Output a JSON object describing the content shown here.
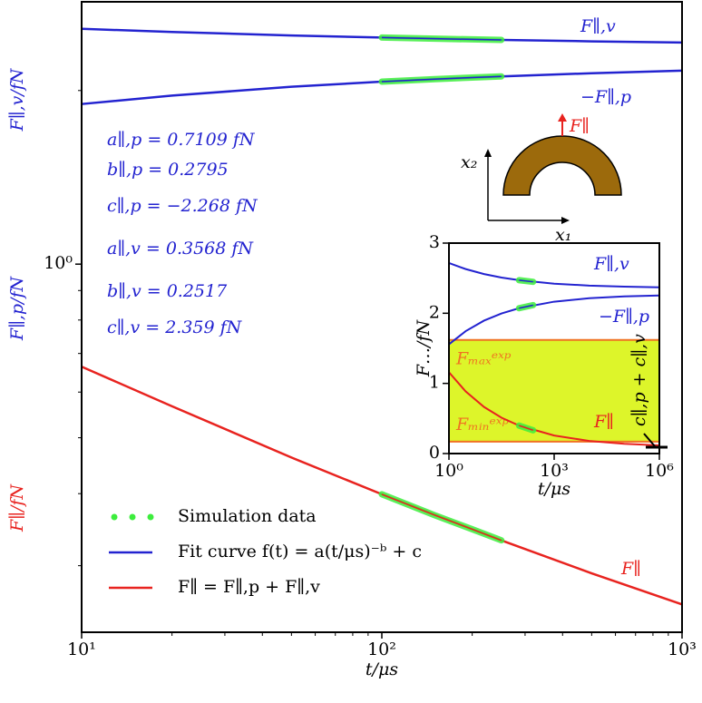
{
  "chart_data": [
    {
      "type": "line",
      "xlabel": "t/μs",
      "ylabels": [
        {
          "text": "F∥,v/fN",
          "color": "#2323d0"
        },
        {
          "text": "F∥,p/fN",
          "color": "#2323d0"
        },
        {
          "text": "F∥/fN",
          "color": "#e8231f"
        }
      ],
      "xlog": true,
      "ylog": true,
      "xlim": [
        10,
        1000
      ],
      "ylim": [
        0.23,
        2.85
      ],
      "xticks": [
        {
          "value": 10,
          "label": "10¹"
        },
        {
          "value": 100,
          "label": "10²"
        },
        {
          "value": 1000,
          "label": "10³"
        }
      ],
      "xminor": [
        20,
        30,
        40,
        50,
        60,
        70,
        80,
        90,
        200,
        300,
        400,
        500,
        600,
        700,
        800,
        900
      ],
      "yticks": [
        {
          "value": 1,
          "label": "10⁰"
        }
      ],
      "yminor": [
        0.3,
        0.4,
        0.5,
        0.6,
        0.7,
        0.8,
        0.9,
        2
      ],
      "curves": [
        {
          "label": "F∥,v",
          "color": "#2323d0",
          "x": [
            10,
            20,
            50,
            100,
            200,
            250,
            500,
            1000
          ],
          "values": [
            2.559,
            2.527,
            2.492,
            2.471,
            2.453,
            2.448,
            2.434,
            2.422
          ],
          "sim_x": [
            100,
            150,
            200,
            250
          ],
          "sim_values": [
            2.471,
            2.46,
            2.453,
            2.448
          ]
        },
        {
          "label": "−F∥,p",
          "color": "#2323d0",
          "x": [
            10,
            20,
            50,
            100,
            200,
            250,
            500,
            1000
          ],
          "values": [
            1.895,
            1.96,
            2.03,
            2.072,
            2.106,
            2.116,
            2.143,
            2.165
          ],
          "sim_x": [
            100,
            150,
            200,
            250
          ],
          "sim_values": [
            2.072,
            2.093,
            2.106,
            2.116
          ]
        },
        {
          "label": "F∥",
          "color": "#e8231f",
          "x": [
            10,
            20,
            50,
            100,
            200,
            250,
            500,
            1000
          ],
          "values": [
            0.664,
            0.567,
            0.462,
            0.399,
            0.347,
            0.332,
            0.291,
            0.257
          ],
          "sim_x": [
            100,
            150,
            200,
            250
          ],
          "sim_values": [
            0.399,
            0.367,
            0.347,
            0.332
          ]
        }
      ],
      "sim_color": "#3ded3d",
      "parameters": [
        "a∥,p = 0.7109 fN",
        "b∥,p = 0.2795",
        "c∥,p = −2.268 fN",
        "a∥,v = 0.3568 fN",
        "b∥,v = 0.2517",
        "c∥,v = 2.359 fN"
      ],
      "legend": [
        {
          "label": "Simulation data",
          "color": "#3ded3d",
          "style": "dotted"
        },
        {
          "label": "Fit curve f(t) = a(t/μs)⁻ᵇ + c",
          "color": "#2323d0",
          "style": "solid"
        },
        {
          "label": "F∥ = F∥,p + F∥,v",
          "color": "#e8231f",
          "style": "solid"
        }
      ]
    },
    {
      "type": "line",
      "xlabel": "t/μs",
      "ylabel": "F…/fN",
      "xlog": true,
      "xlim": [
        1,
        1000000
      ],
      "ylim": [
        0,
        3
      ],
      "xticks": [
        {
          "value": 1,
          "label": "10⁰"
        },
        {
          "value": 1000,
          "label": "10³"
        },
        {
          "value": 1000000,
          "label": "10⁶"
        }
      ],
      "yticks": [
        0,
        1,
        2,
        3
      ],
      "band": {
        "min": 0.17,
        "max": 1.62,
        "color": "#ddf52a",
        "edge_color": "#f07222",
        "min_label": "Fₘᵢₙᵉˣᵖ",
        "max_label": "Fₘₐₓᵉˣᵖ"
      },
      "curves": [
        {
          "label": "F∥,v",
          "color": "#2323d0",
          "x": [
            1,
            3,
            10,
            31.6,
            100,
            1000,
            10000,
            100000,
            1000000
          ],
          "values": [
            2.716,
            2.63,
            2.559,
            2.509,
            2.471,
            2.422,
            2.394,
            2.379,
            2.37
          ],
          "sim_x": [
            100,
            250
          ],
          "sim_values": [
            2.471,
            2.448
          ]
        },
        {
          "label": "−F∥,p",
          "color": "#2323d0",
          "x": [
            1,
            3,
            10,
            31.6,
            100,
            1000,
            10000,
            100000,
            1000000
          ],
          "values": [
            1.557,
            1.745,
            1.895,
            1.997,
            2.072,
            2.165,
            2.214,
            2.24,
            2.253
          ],
          "sim_x": [
            100,
            250
          ],
          "sim_values": [
            2.072,
            2.116
          ]
        },
        {
          "label": "F∥",
          "color": "#e8231f",
          "x": [
            1,
            3,
            10,
            31.6,
            100,
            1000,
            10000,
            100000,
            1000000
          ],
          "values": [
            1.159,
            0.885,
            0.664,
            0.511,
            0.399,
            0.257,
            0.18,
            0.139,
            0.117
          ],
          "sim_x": [
            100,
            250
          ],
          "sim_values": [
            0.399,
            0.332
          ]
        }
      ],
      "sim_color": "#3ded3d",
      "asymptote_label": "c∥,p + c∥,v"
    }
  ],
  "diagram": {
    "x1": "x₁",
    "x2": "x₂",
    "force": "F∥"
  }
}
